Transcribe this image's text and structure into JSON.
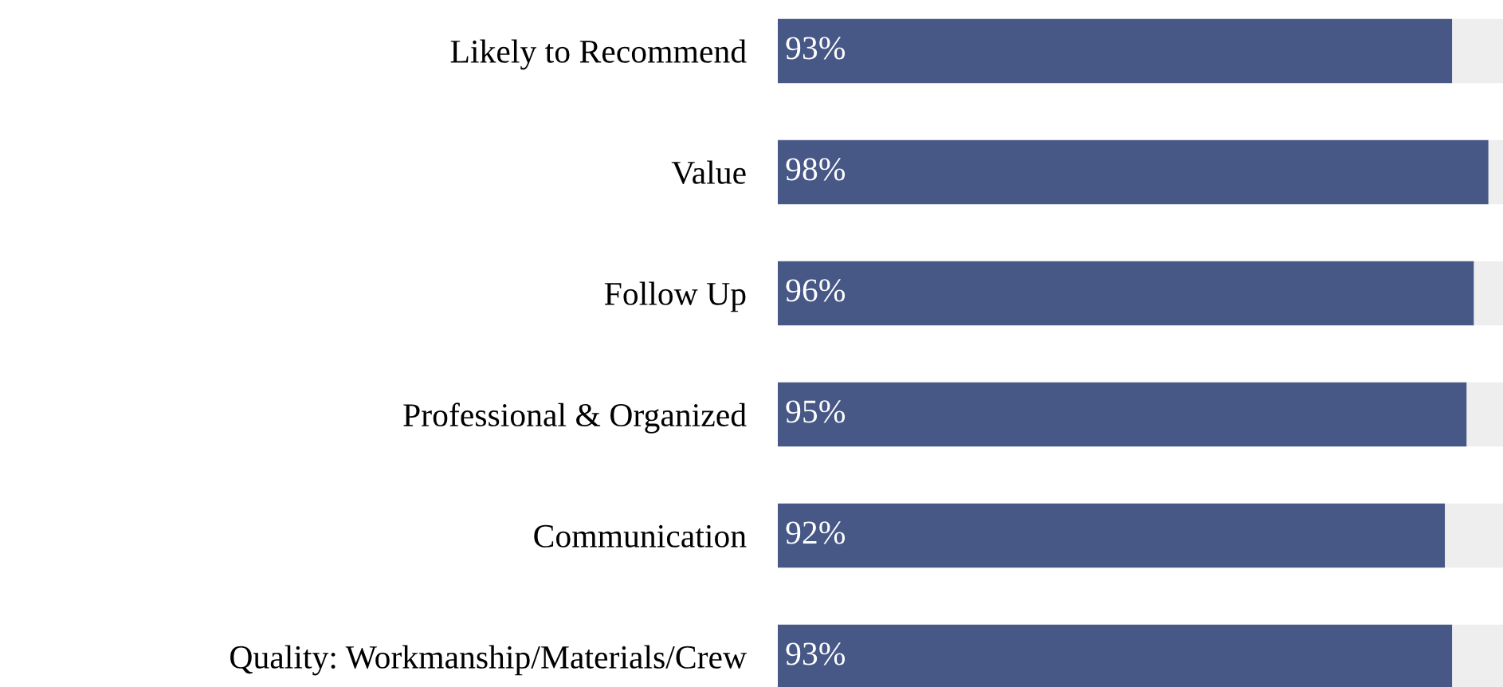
{
  "chart_data": {
    "type": "bar",
    "orientation": "horizontal",
    "stacked": true,
    "categories": [
      "Likely to Recommend",
      "Value",
      "Follow Up",
      "Professional & Organized",
      "Communication",
      "Quality: Workmanship/Materials/Crew"
    ],
    "series": [
      {
        "color": "#475786",
        "values": [
          93,
          98,
          96,
          95,
          92,
          93
        ],
        "value_labels": [
          "93%",
          "98%",
          "96%",
          "95%",
          "92%",
          "93%"
        ]
      },
      {
        "color": "#eeeeee",
        "values": [
          7,
          2,
          4,
          5,
          8,
          7
        ]
      }
    ],
    "xlim": [
      0,
      100
    ],
    "tick_labels": "y",
    "grid": false,
    "legend": false
  }
}
